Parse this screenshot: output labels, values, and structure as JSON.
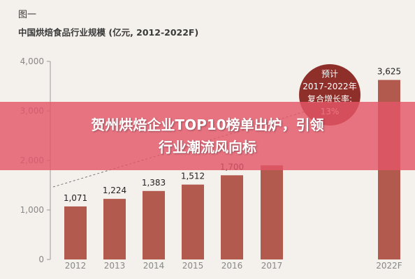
{
  "figure_label": "图一",
  "chart_data": {
    "type": "bar",
    "title": "中国烘焙食品行业规模 (亿元, 2012-2022F)",
    "categories": [
      "2012",
      "2013",
      "2014",
      "2015",
      "2016",
      "2017",
      "2022F"
    ],
    "values": [
      1071,
      1224,
      1383,
      1512,
      1700,
      1900,
      3625
    ],
    "value_labels": [
      "1,071",
      "1,224",
      "1,383",
      "1,512",
      "1,700",
      "",
      "3,625"
    ],
    "ylim": [
      0,
      4000
    ],
    "yticks": [
      0,
      1000,
      2000,
      3000,
      4000
    ],
    "ytick_labels": [
      "0",
      "1,000",
      "2,000",
      "3,000",
      "4,000"
    ],
    "grid": false,
    "colors": {
      "bar": "#b35a4f",
      "bubble": "#8e2f2a",
      "axis": "#9a9a9a",
      "text": "#3a3a3a"
    },
    "annotation": {
      "lines": [
        "预计",
        "2017-2022年",
        "复合增长率:",
        "13%"
      ]
    }
  },
  "banner": {
    "line1": "贺州烘焙企业TOP10榜单出炉，引领",
    "line2": "行业潮流风向标"
  }
}
